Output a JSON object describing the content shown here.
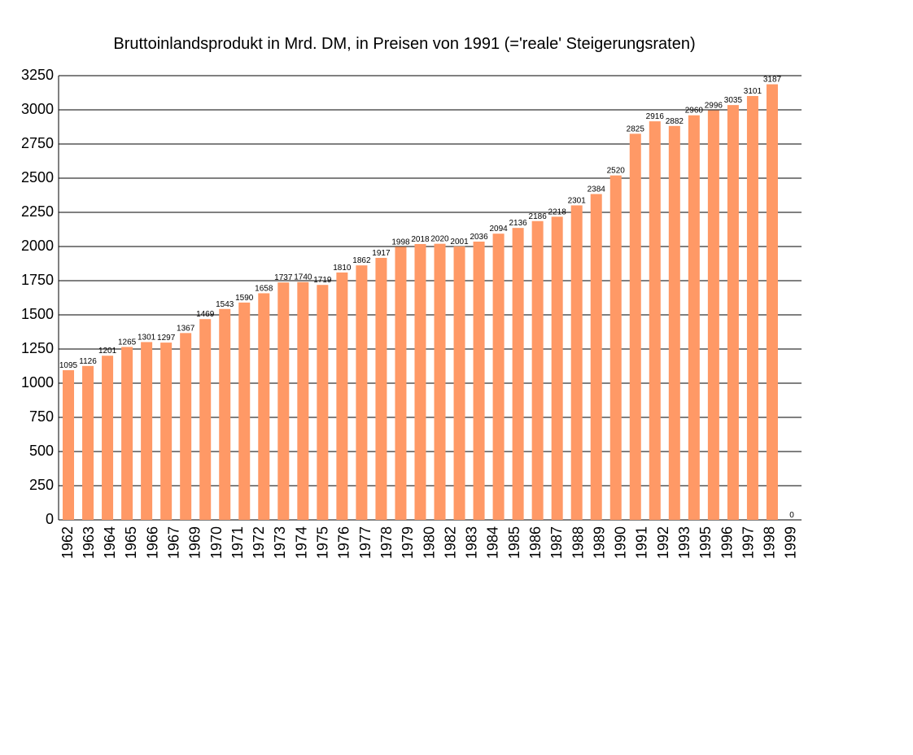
{
  "chart_data": {
    "type": "bar",
    "title": "Bruttoinlandsprodukt in Mrd. DM, in Preisen von 1991 (='reale' Steigerungsraten)",
    "categories": [
      "1962",
      "1963",
      "1964",
      "1965",
      "1966",
      "1967",
      null,
      "1969",
      "1970",
      "1971",
      "1972",
      "1973",
      "1974",
      "1975",
      "1976",
      "1977",
      "1978",
      "1979",
      "1980",
      null,
      "1982",
      "1983",
      "1984",
      "1985",
      "1986",
      "1987",
      "1988",
      "1989",
      "1990",
      "1991",
      "1992",
      "1993",
      null,
      "1995",
      "1996",
      "1997",
      "1998",
      "1999"
    ],
    "values": [
      1095,
      1126,
      1201,
      1265,
      1301,
      1297,
      1367,
      1469,
      1543,
      1590,
      1658,
      1737,
      1740,
      1719,
      1810,
      1862,
      1917,
      1998,
      2018,
      2020,
      2001,
      2036,
      2094,
      2136,
      2186,
      2218,
      2301,
      2384,
      2520,
      2825,
      2916,
      2882,
      2960,
      2996,
      3035,
      3101,
      3187,
      0
    ],
    "color": "#ff9966",
    "ylim": [
      0,
      3250
    ],
    "yticks": [
      0,
      250,
      500,
      750,
      1000,
      1250,
      1500,
      1750,
      2000,
      2250,
      2500,
      2750,
      3000,
      3250
    ],
    "grid": true
  }
}
